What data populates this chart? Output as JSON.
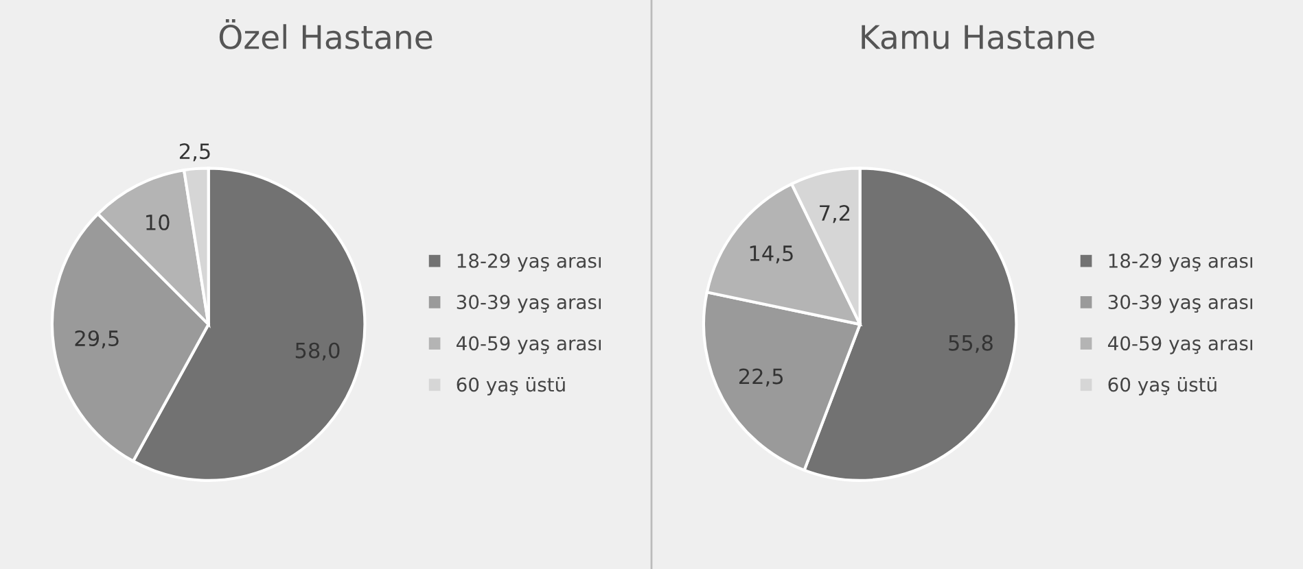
{
  "chart_data": [
    {
      "type": "pie",
      "title": "Özel Hastane",
      "categories": [
        "18-29 yaş arası",
        "30-39 yaş arası",
        "40-59 yaş arası",
        "60 yaş üstü"
      ],
      "values": [
        58.0,
        29.5,
        10,
        2.5
      ],
      "value_labels": [
        "58,0",
        "29,5",
        "10",
        "2,5"
      ],
      "colors": [
        "#727272",
        "#9a9a9a",
        "#b4b4b4",
        "#d6d6d6"
      ],
      "legend": "right"
    },
    {
      "type": "pie",
      "title": "Kamu Hastane",
      "categories": [
        "18-29 yaş arası",
        "30-39 yaş arası",
        "40-59 yaş arası",
        "60 yaş üstü"
      ],
      "values": [
        55.8,
        22.5,
        14.5,
        7.2
      ],
      "value_labels": [
        "55,8",
        "22,5",
        "14,5",
        "7,2"
      ],
      "colors": [
        "#727272",
        "#9a9a9a",
        "#b4b4b4",
        "#d6d6d6"
      ],
      "legend": "right"
    }
  ]
}
